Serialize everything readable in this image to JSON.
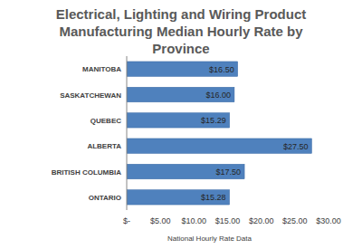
{
  "chart_data": {
    "type": "bar",
    "orientation": "horizontal",
    "title": "Electrical, Lighting and Wiring Product Manufacturing Median Hourly Rate by Province",
    "x_label": "National Hourly Rate Data",
    "categories": [
      "MANITOBA",
      "SASKATCHEWAN",
      "QUEBEC",
      "ALBERTA",
      "BRITISH COLUMBIA",
      "ONTARIO"
    ],
    "values": [
      16.5,
      16,
      15.29,
      27.5,
      17.5,
      15.28
    ],
    "value_labels": [
      "$16.50",
      "$16.00",
      "$15.29",
      "$27.50",
      "$17.50",
      "$15.28"
    ],
    "color": "#4f81bd",
    "data_labels": true,
    "grid": false,
    "xlim": [
      0,
      30
    ],
    "xticks": [
      {
        "value": 0,
        "label": "$-"
      },
      {
        "value": 5,
        "label": "$5.00"
      },
      {
        "value": 10,
        "label": "$10.00"
      },
      {
        "value": 15,
        "label": "$15.00"
      },
      {
        "value": 20,
        "label": "$20.00"
      },
      {
        "value": 25,
        "label": "$25.00"
      },
      {
        "value": 30,
        "label": "$30.00"
      }
    ]
  }
}
